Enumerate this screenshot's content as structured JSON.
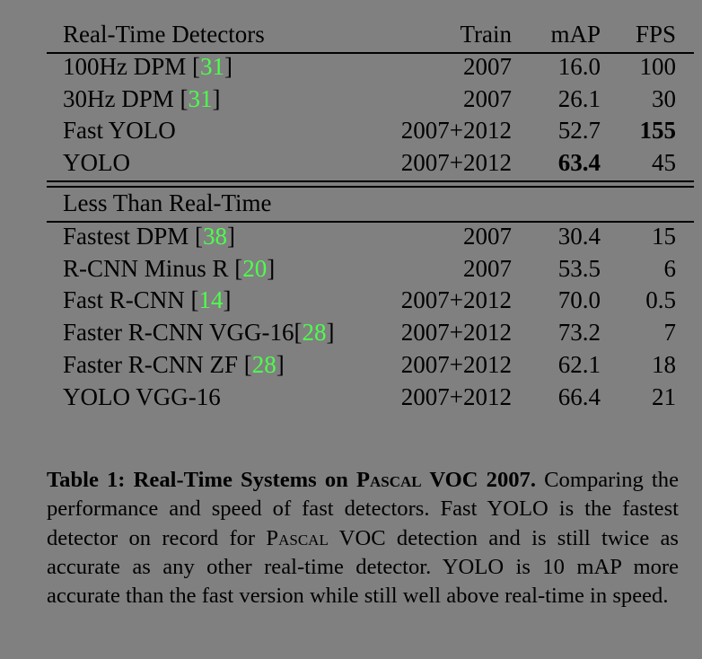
{
  "table": {
    "header": {
      "detector": "Real-Time Detectors",
      "train": "Train",
      "map": "mAP",
      "fps": "FPS"
    },
    "realtime_rows": [
      {
        "name": "100Hz DPM ",
        "cite": "31",
        "train": "2007",
        "map": "16.0",
        "fps": "100"
      },
      {
        "name": "30Hz DPM ",
        "cite": "31",
        "train": "2007",
        "map": "26.1",
        "fps": "30"
      },
      {
        "name": "Fast YOLO",
        "cite": "",
        "train": "2007+2012",
        "map": "52.7",
        "fps": "155"
      },
      {
        "name": "YOLO",
        "cite": "",
        "train": "2007+2012",
        "map": "63.4",
        "fps": "45"
      }
    ],
    "section2_title": "Less Than Real-Time",
    "slow_rows": [
      {
        "name": "Fastest DPM ",
        "cite": "38",
        "train": "2007",
        "map": "30.4",
        "fps": "15"
      },
      {
        "name": "R-CNN Minus R ",
        "cite": "20",
        "train": "2007",
        "map": "53.5",
        "fps": "6"
      },
      {
        "name": "Fast R-CNN ",
        "cite": "14",
        "train": "2007+2012",
        "map": "70.0",
        "fps": "0.5"
      },
      {
        "name": "Faster R-CNN VGG-16",
        "cite": "28",
        "train": "2007+2012",
        "map": "73.2",
        "fps": "7"
      },
      {
        "name": "Faster R-CNN ZF ",
        "cite": "28",
        "train": "2007+2012",
        "map": "62.1",
        "fps": "18"
      },
      {
        "name": "YOLO VGG-16",
        "cite": "",
        "train": "2007+2012",
        "map": "66.4",
        "fps": "21"
      }
    ]
  },
  "caption": {
    "label": "Table 1:",
    "title_pre": "Real-Time Systems on ",
    "title_sc": "Pascal",
    "title_post": " VOC 2007.",
    "body_1": " Comparing the performance and speed of fast detectors.  Fast YOLO is the fastest detector on record for ",
    "body_sc": "Pascal",
    "body_2": " VOC detection and is still twice as accurate as any other real-time detector.  YOLO is 10 mAP more accurate than the fast version while still well above real-time in speed."
  }
}
